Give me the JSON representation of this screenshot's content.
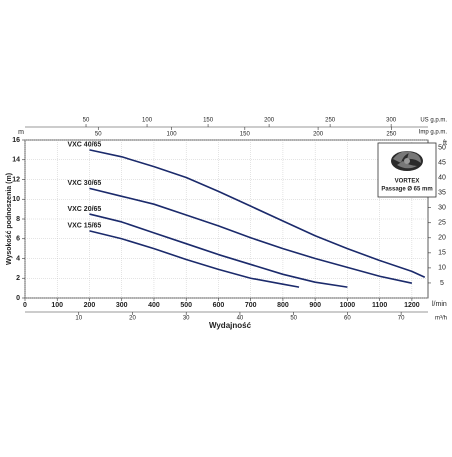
{
  "chart_data": {
    "type": "line",
    "ylabel": "Wysokość podnoszenia (m)",
    "xlabel": "Wydajność",
    "xunit": "l/min",
    "yunit": "m",
    "y2unit": "ft",
    "xlim": [
      0,
      1250
    ],
    "xticks": [
      0,
      100,
      200,
      300,
      400,
      500,
      600,
      700,
      800,
      900,
      1000,
      1100,
      1200
    ],
    "ylim": [
      0,
      16
    ],
    "yticks": [
      0,
      2,
      4,
      6,
      8,
      10,
      12,
      14,
      16
    ],
    "y2lim": [
      0,
      52.49
    ],
    "y2ticks": [
      5,
      10,
      15,
      20,
      25,
      30,
      35,
      40,
      45,
      50
    ],
    "secondary_x_axes": [
      {
        "unit": "US g.p.m.",
        "xlim": [
          0,
          330.2
        ],
        "xticks": [
          50,
          100,
          150,
          200,
          250,
          300
        ]
      },
      {
        "unit": "Imp g.p.m.",
        "xlim": [
          0,
          275
        ],
        "xticks": [
          50,
          100,
          150,
          200,
          250
        ]
      },
      {
        "unit": "m³/h",
        "xlim": [
          0,
          75
        ],
        "xticks": [
          10,
          20,
          30,
          40,
          50,
          60,
          70
        ]
      }
    ],
    "grid": true,
    "series": [
      {
        "name": "VXC 40/65",
        "color": "#1b2a6b",
        "x": [
          200,
          300,
          400,
          500,
          600,
          700,
          800,
          900,
          1000,
          1100,
          1200,
          1240
        ],
        "values": [
          15,
          14.3,
          13.3,
          12.2,
          10.8,
          9.3,
          7.8,
          6.3,
          5,
          3.8,
          2.7,
          2.1
        ]
      },
      {
        "name": "VXC 30/65",
        "color": "#1b2a6b",
        "x": [
          200,
          300,
          400,
          500,
          600,
          700,
          800,
          900,
          1000,
          1100,
          1200
        ],
        "values": [
          11.1,
          10.3,
          9.5,
          8.4,
          7.3,
          6.1,
          5,
          4,
          3.1,
          2.2,
          1.5
        ]
      },
      {
        "name": "VXC 20/65",
        "color": "#1b2a6b",
        "x": [
          200,
          300,
          400,
          500,
          600,
          700,
          800,
          900,
          1000
        ],
        "values": [
          8.5,
          7.7,
          6.6,
          5.5,
          4.4,
          3.4,
          2.4,
          1.6,
          1.1
        ]
      },
      {
        "name": "VXC 15/65",
        "color": "#1b2a6b",
        "x": [
          200,
          300,
          400,
          500,
          600,
          700,
          800,
          850
        ],
        "values": [
          6.8,
          6,
          5,
          3.9,
          2.9,
          2,
          1.4,
          1.1
        ]
      }
    ],
    "inset": {
      "title": "VORTEX",
      "text": "Passage Ø 65 mm"
    }
  }
}
